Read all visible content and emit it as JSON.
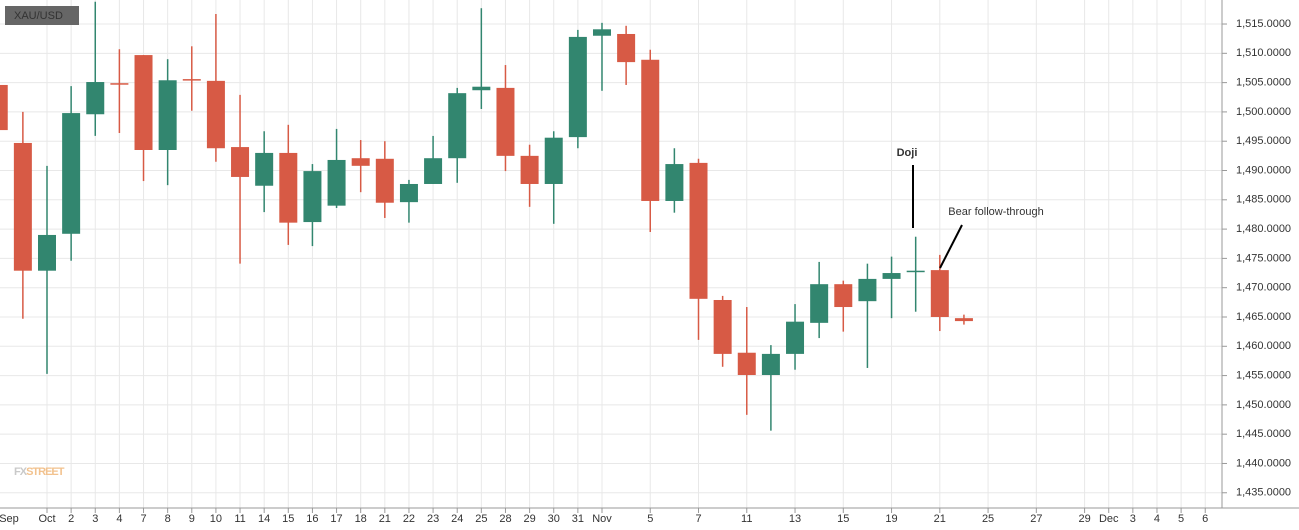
{
  "chart_data": {
    "type": "candlestick",
    "symbol": "XAU/USD",
    "watermark": [
      "FX",
      "STREET"
    ],
    "annotations": [
      "Doji",
      "Bear follow-through"
    ],
    "categories": [
      "Sep",
      null,
      "Oct",
      "2",
      "3",
      "4",
      "7",
      "8",
      "9",
      "10",
      "11",
      "14",
      "15",
      "16",
      "17",
      "18",
      "21",
      "22",
      "23",
      "24",
      "25",
      "28",
      "29",
      "30",
      "31",
      "Nov",
      null,
      "5",
      null,
      "7",
      null,
      "11",
      null,
      "13",
      null,
      "15",
      null,
      "19",
      null,
      "21",
      null,
      "25",
      null,
      "27",
      null,
      "29",
      "Dec",
      "3",
      "4",
      "5",
      "6"
    ],
    "open": [
      1504.6,
      1494.7,
      1472.9,
      1479.2,
      1499.6,
      1504.9,
      1509.7,
      1493.5,
      1505.6,
      1505.3,
      1494.0,
      1487.4,
      1493.0,
      1481.2,
      1484.0,
      1492.1,
      1492.0,
      1484.6,
      1487.7,
      1492.1,
      1503.7,
      1504.1,
      1492.5,
      1487.7,
      1495.7,
      1513.0,
      1513.3,
      1508.9,
      1484.8,
      1491.3,
      1467.9,
      1458.9,
      1455.1,
      1458.7,
      1464.0,
      1470.6,
      1467.7,
      1471.5,
      1472.7,
      1473.0,
      1464.8,
      null,
      null,
      null,
      null,
      null,
      null,
      null,
      null,
      null,
      null
    ],
    "high": [
      1507.5,
      1500.0,
      1490.8,
      1504.4,
      1518.8,
      1510.7,
      1509.7,
      1509.0,
      1511.2,
      1516.7,
      1502.9,
      1496.7,
      1497.8,
      1491.1,
      1497.1,
      1495.2,
      1495.0,
      1488.4,
      1495.9,
      1504.1,
      1517.7,
      1508.0,
      1494.4,
      1496.7,
      1514.0,
      1515.2,
      1514.7,
      1510.6,
      1493.8,
      1492.0,
      1468.6,
      1466.7,
      1460.2,
      1467.2,
      1474.4,
      1471.2,
      1474.1,
      1475.3,
      1478.7,
      1475.6,
      1465.4,
      null,
      null,
      null,
      null,
      null,
      null,
      null,
      null,
      null,
      null
    ],
    "low": [
      1487.2,
      1464.7,
      1455.3,
      1474.6,
      1495.9,
      1496.4,
      1488.2,
      1487.5,
      1500.2,
      1491.5,
      1474.1,
      1482.9,
      1477.3,
      1477.1,
      1483.6,
      1486.3,
      1481.9,
      1481.1,
      1487.7,
      1487.9,
      1500.5,
      1489.9,
      1483.8,
      1480.9,
      1493.8,
      1503.6,
      1504.6,
      1479.5,
      1482.8,
      1461.1,
      1456.5,
      1448.3,
      1445.6,
      1456.0,
      1461.4,
      1462.5,
      1456.3,
      1464.8,
      1465.9,
      1462.6,
      1463.7,
      null,
      null,
      null,
      null,
      null,
      null,
      null,
      null,
      null,
      null
    ],
    "close": [
      1496.9,
      1472.9,
      1479.0,
      1499.8,
      1505.1,
      1504.8,
      1493.5,
      1505.4,
      1505.4,
      1493.8,
      1488.9,
      1493.0,
      1481.1,
      1489.9,
      1491.8,
      1490.8,
      1484.5,
      1487.7,
      1492.1,
      1503.2,
      1504.3,
      1492.5,
      1487.7,
      1495.6,
      1512.8,
      1514.1,
      1508.5,
      1484.8,
      1491.1,
      1468.1,
      1458.7,
      1455.1,
      1458.7,
      1464.2,
      1470.6,
      1466.7,
      1471.5,
      1472.5,
      1472.9,
      1465.0,
      1464.3,
      null,
      null,
      null,
      null,
      null,
      null,
      null,
      null,
      null,
      null
    ],
    "up_color": "#32866f",
    "down_color": "#d75a45",
    "ylim": [
      1432.4,
      1519.1
    ],
    "yticks": [
      {
        "value": 1435,
        "label": "1,435.0000"
      },
      {
        "value": 1440,
        "label": "1,440.0000"
      },
      {
        "value": 1445,
        "label": "1,445.0000"
      },
      {
        "value": 1450,
        "label": "1,450.0000"
      },
      {
        "value": 1455,
        "label": "1,455.0000"
      },
      {
        "value": 1460,
        "label": "1,460.0000"
      },
      {
        "value": 1465,
        "label": "1,465.0000"
      },
      {
        "value": 1470,
        "label": "1,470.0000"
      },
      {
        "value": 1475,
        "label": "1,475.0000"
      },
      {
        "value": 1480,
        "label": "1,480.0000"
      },
      {
        "value": 1485,
        "label": "1,485.0000"
      },
      {
        "value": 1490,
        "label": "1,490.0000"
      },
      {
        "value": 1495,
        "label": "1,495.0000"
      },
      {
        "value": 1500,
        "label": "1,500.0000"
      },
      {
        "value": 1505,
        "label": "1,505.0000"
      },
      {
        "value": 1510,
        "label": "1,510.0000"
      },
      {
        "value": 1515,
        "label": "1,515.0000"
      }
    ],
    "grid": true
  }
}
